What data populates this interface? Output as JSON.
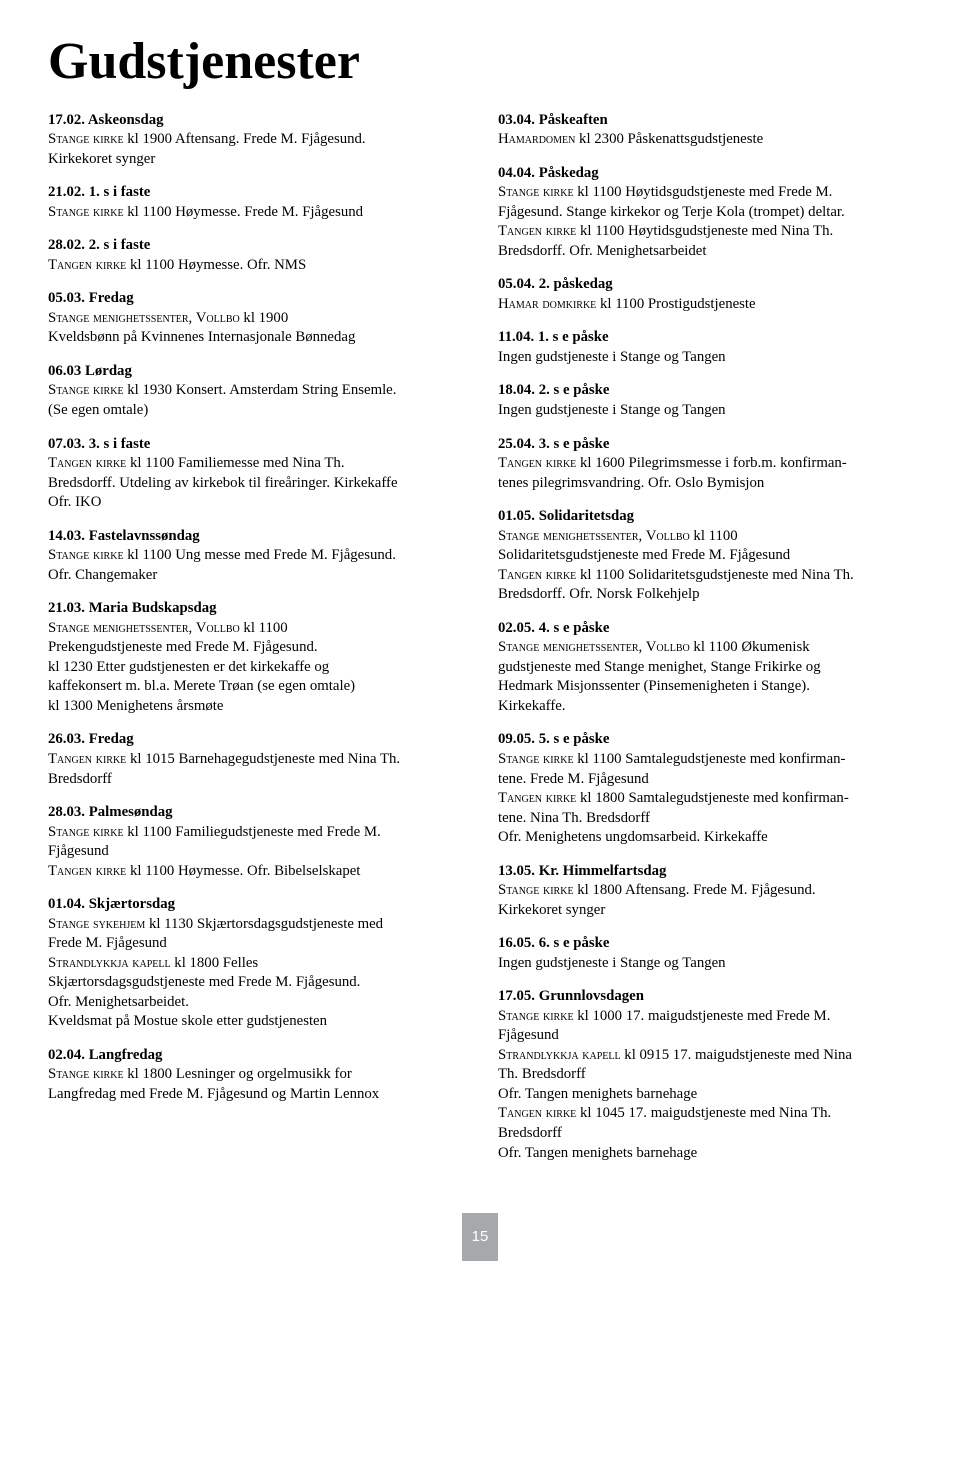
{
  "title": "Gudstjenester",
  "page_number": "15",
  "left_column": [
    {
      "heading": "17.02. Askeonsdag",
      "lines": [
        "<span class='sc'>Stange kirke</span> kl 1900  Aftensang. Frede M. Fjågesund.",
        "Kirkekoret synger"
      ]
    },
    {
      "heading": "21.02. 1. s i faste",
      "lines": [
        "<span class='sc'>Stange kirke</span> kl 1100  Høymesse. Frede M. Fjågesund"
      ]
    },
    {
      "heading": "28.02. 2. s i faste",
      "lines": [
        "<span class='sc'>Tangen kirke</span> kl 1100  Høymesse. Ofr. NMS"
      ]
    },
    {
      "heading": "05.03. Fredag",
      "lines": [
        "<span class='sc'>Stange menighetssenter, Vollbo</span>  kl 1900",
        "Kveldsbønn på Kvinnenes Internasjonale Bønnedag"
      ]
    },
    {
      "heading": "06.03 Lørdag",
      "lines": [
        "<span class='sc'>Stange kirke</span> kl 1930  Konsert. Amsterdam String Ensemle.",
        "(Se egen omtale)"
      ]
    },
    {
      "heading": "07.03. 3. s i faste",
      "lines": [
        "<span class='sc'>Tangen kirke</span> kl 1100  Familiemesse med Nina Th.",
        "Bredsdorff. Utdeling av kirkebok til fireåringer. Kirkekaffe",
        "Ofr. IKO"
      ]
    },
    {
      "heading": "14.03. Fastelavnssøndag",
      "lines": [
        "<span class='sc'>Stange kirke</span> kl 1100  Ung messe med Frede M. Fjågesund.",
        "Ofr. Changemaker"
      ]
    },
    {
      "heading": "21.03. Maria Budskapsdag",
      "lines": [
        "<span class='sc'>Stange menighetssenter, Vollbo</span>  kl 1100",
        "Prekengudstjeneste med Frede M. Fjågesund.",
        "kl 1230  Etter gudstjenesten er det kirkekaffe og",
        "kaffekonsert m. bl.a. Merete Trøan (se egen omtale)",
        "kl 1300  Menighetens årsmøte"
      ]
    },
    {
      "heading": "26.03. Fredag",
      "lines": [
        "<span class='sc'>Tangen kirke</span> kl 1015  Barnehagegudstjeneste med Nina Th.",
        "Bredsdorff"
      ]
    },
    {
      "heading": "28.03.  Palmesøndag",
      "lines": [
        "<span class='sc'>Stange kirke</span> kl 1100  Familiegudstjeneste med Frede M.",
        "Fjågesund",
        "<span class='sc'>Tangen kirke</span> kl 1100  Høymesse. Ofr. Bibelselskapet"
      ]
    },
    {
      "heading": "01.04. Skjærtorsdag",
      "lines": [
        "<span class='sc'>Stange sykehjem</span> kl 1130  Skjærtorsdagsgudstjeneste med",
        "Frede M. Fjågesund",
        "<span class='sc'>Strandlykkja kapell</span> kl 1800 Felles",
        "Skjærtorsdagsgudstjeneste med Frede M. Fjågesund.",
        "Ofr. Menighetsarbeidet.",
        "Kveldsmat på Mostue skole etter gudstjenesten"
      ]
    },
    {
      "heading": "02.04.  Langfredag",
      "lines": [
        "<span class='sc'>Stange kirke</span> kl 1800  Lesninger og orgelmusikk for",
        "Langfredag med Frede M. Fjågesund og Martin Lennox"
      ]
    }
  ],
  "right_column": [
    {
      "heading": "03.04.  Påskeaften",
      "lines": [
        "<span class='sc'>Hamardomen</span> kl 2300  Påskenattsgudstjeneste"
      ]
    },
    {
      "heading": "04.04.  Påskedag",
      "lines": [
        "<span class='sc'>Stange kirke</span> kl 1100  Høytidsgudstjeneste med Frede M.",
        "Fjågesund. Stange kirkekor og Terje Kola (trompet) deltar.",
        "<span class='sc'>Tangen kirke</span> kl 1100  Høytidsgudstjeneste med Nina Th.",
        "Bredsdorff. Ofr. Menighetsarbeidet"
      ]
    },
    {
      "heading": "05.04.  2. påskedag",
      "lines": [
        "<span class='sc'>Hamar domkirke</span>  kl 1100 Prostigudstjeneste"
      ]
    },
    {
      "heading": "11.04.  1. s e påske",
      "lines": [
        "Ingen gudstjeneste i Stange og Tangen"
      ]
    },
    {
      "heading": "18.04.  2. s e påske",
      "lines": [
        "Ingen gudstjeneste i Stange og Tangen"
      ]
    },
    {
      "heading": "25.04.  3. s e påske",
      "lines": [
        "<span class='sc'>Tangen kirke</span> kl 1600  Pilegrimsmesse i forb.m. konfirman-",
        "tenes pilegrimsvandring. Ofr. Oslo Bymisjon"
      ]
    },
    {
      "heading": "01.05.  Solidaritetsdag",
      "lines": [
        "<span class='sc'>Stange menighetssenter, Vollbo</span> kl 1100",
        "Solidaritetsgudstjeneste med Frede M. Fjågesund",
        "<span class='sc'>Tangen kirke</span> kl 1100  Solidaritetsgudstjeneste med Nina Th.",
        "Bredsdorff. Ofr. Norsk Folkehjelp"
      ]
    },
    {
      "heading": "02.05.  4. s e påske",
      "lines": [
        "<span class='sc'>Stange menighetssenter, Vollbo</span>   kl 1100  Økumenisk",
        "gudstjeneste med Stange menighet, Stange Frikirke og",
        "Hedmark Misjonssenter (Pinsemenigheten i Stange).",
        "Kirkekaffe."
      ]
    },
    {
      "heading": "09.05.  5. s e påske",
      "lines": [
        "<span class='sc'>Stange kirke</span> kl 1100  Samtalegudstjeneste med konfirman-",
        "tene. Frede M. Fjågesund",
        "<span class='sc'>Tangen kirke</span> kl 1800  Samtalegudstjeneste med konfirman-",
        "tene. Nina Th. Bredsdorff",
        "Ofr. Menighetens ungdomsarbeid. Kirkekaffe"
      ]
    },
    {
      "heading": "13.05.  Kr. Himmelfartsdag",
      "lines": [
        "<span class='sc'>Stange kirke</span> kl 1800  Aftensang. Frede M. Fjågesund.",
        "Kirkekoret synger"
      ]
    },
    {
      "heading": "16.05.  6. s e påske",
      "lines": [
        "Ingen gudstjeneste i Stange og Tangen"
      ]
    },
    {
      "heading": "17.05. Grunnlovsdagen",
      "lines": [
        "<span class='sc'>Stange kirke</span> kl 1000  17. maigudstjeneste med Frede M.",
        "Fjågesund",
        "<span class='sc'>Strandlykkja kapell</span> kl 0915 17. maigudstjeneste med Nina",
        "Th. Bredsdorff",
        "Ofr. Tangen menighets barnehage",
        "<span class='sc'>Tangen kirke</span> kl 1045  17. maigudstjeneste med Nina Th.",
        "Bredsdorff",
        "Ofr. Tangen menighets barnehage"
      ]
    }
  ]
}
